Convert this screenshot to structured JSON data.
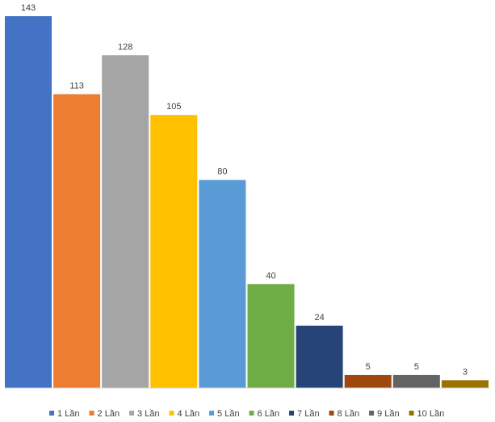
{
  "chart_data": {
    "type": "bar",
    "title": "",
    "xlabel": "",
    "ylabel": "",
    "ylim": [
      0,
      143
    ],
    "grid": false,
    "legend_position": "bottom",
    "data_labels": true,
    "series": [
      {
        "name": "1 Lần",
        "value": 143,
        "color": "#4472C4"
      },
      {
        "name": "2 Lần",
        "value": 113,
        "color": "#ED7D31"
      },
      {
        "name": "3 Lần",
        "value": 128,
        "color": "#A5A5A5"
      },
      {
        "name": "4 Lần",
        "value": 105,
        "color": "#FFC000"
      },
      {
        "name": "5 Lần",
        "value": 80,
        "color": "#5B9BD5"
      },
      {
        "name": "6 Lần",
        "value": 40,
        "color": "#70AD47"
      },
      {
        "name": "7 Lần",
        "value": 24,
        "color": "#264478"
      },
      {
        "name": "8 Lần",
        "value": 5,
        "color": "#9E480E"
      },
      {
        "name": "9 Lần",
        "value": 5,
        "color": "#636363"
      },
      {
        "name": "10 Lần",
        "value": 3,
        "color": "#997300"
      }
    ]
  }
}
